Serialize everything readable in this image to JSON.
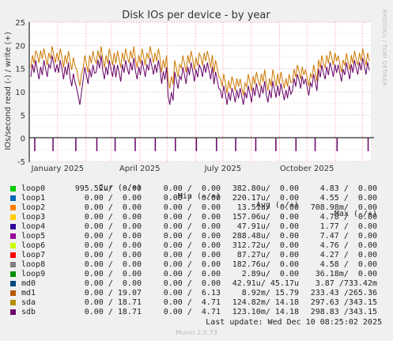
{
  "chart_data": {
    "type": "line",
    "title": "Disk IOs per device - by year",
    "ylabel": "IOs/second read (-) / write (+)",
    "ylim": [
      -5,
      25
    ],
    "yticks": [
      -5,
      0,
      5,
      10,
      15,
      20,
      25
    ],
    "grid": true,
    "xticks": [
      "January 2025",
      "April 2025",
      "July 2025",
      "October 2025"
    ],
    "x_range": [
      "2024-12-01",
      "2025-12-10"
    ],
    "series": [
      {
        "name": "sda",
        "color": "#cc7700",
        "write_approx": [
          17,
          18,
          17.5,
          18,
          17.5,
          17,
          16.5,
          13,
          16,
          17,
          18,
          17,
          17.5,
          17,
          17.5,
          18,
          17,
          17.5,
          18,
          17.5,
          16,
          12.5,
          15,
          16,
          17,
          16.5,
          17.5,
          17,
          15,
          12,
          11.5,
          12,
          11,
          12,
          12.5,
          13,
          12,
          13,
          12.5,
          12,
          14,
          14.5,
          13,
          14,
          16,
          17,
          17.5,
          16,
          16.5,
          17,
          17.5,
          17.5
        ]
      },
      {
        "name": "sdb",
        "color": "#660066",
        "write_approx": [
          15,
          14.5,
          15,
          16,
          15,
          14.5,
          13,
          9,
          13.5,
          14,
          16,
          14.5,
          15,
          14,
          15,
          15.5,
          14.5,
          15,
          15.5,
          15,
          13.5,
          9,
          12.5,
          13.5,
          14.5,
          14,
          15,
          14.5,
          12.5,
          9.5,
          9,
          9.5,
          9,
          9.5,
          10,
          10.5,
          9.5,
          10.5,
          10,
          9.5,
          12,
          12.5,
          11,
          12,
          14,
          14.5,
          15,
          14,
          14.5,
          15,
          15.5,
          15.5
        ]
      },
      {
        "name": "sdb",
        "color": "#660066",
        "read_approx": [
          -2.8,
          -2.8,
          -2.8,
          -2.8,
          -2.8,
          -2.8,
          -2.8,
          -2.8,
          -2.8,
          -2.8,
          -2.8,
          -2.8,
          -2.8,
          -2.8,
          -2.8,
          -2.8,
          -2.8
        ]
      }
    ]
  },
  "side_label": "RRDTOOL / TOBI OETIKER",
  "legend": {
    "headers": [
      "Cur (-/+)",
      "Min (-/+)",
      "Avg (-/+)",
      "Max (-/+)"
    ],
    "rows": [
      {
        "name": "loop0",
        "color": "#00cc00",
        "cur": "995.52u/  0.00",
        "min": "0.00 /  0.00",
        "avg": "382.80u/  0.00",
        "max": "4.83 /  0.00"
      },
      {
        "name": "loop1",
        "color": "#0066b3",
        "cur": "0.00 /  0.00",
        "min": "0.00 /  0.00",
        "avg": "220.17u/  0.00",
        "max": "4.55 /  0.00"
      },
      {
        "name": "loop2",
        "color": "#ff8000",
        "cur": "0.00 /  0.00",
        "min": "0.00 /  0.00",
        "avg": "13.51u/  0.00",
        "max": "708.98m/  0.00"
      },
      {
        "name": "loop3",
        "color": "#ffcc00",
        "cur": "0.00 /  0.00",
        "min": "0.00 /  0.00",
        "avg": "157.06u/  0.00",
        "max": "4.78 /  0.00"
      },
      {
        "name": "loop4",
        "color": "#330099",
        "cur": "0.00 /  0.00",
        "min": "0.00 /  0.00",
        "avg": "47.91u/  0.00",
        "max": "1.77 /  0.00"
      },
      {
        "name": "loop5",
        "color": "#990099",
        "cur": "0.00 /  0.00",
        "min": "0.00 /  0.00",
        "avg": "288.48u/  0.00",
        "max": "7.47 /  0.00"
      },
      {
        "name": "loop6",
        "color": "#ccff00",
        "cur": "0.00 /  0.00",
        "min": "0.00 /  0.00",
        "avg": "312.72u/  0.00",
        "max": "4.76 /  0.00"
      },
      {
        "name": "loop7",
        "color": "#ff0000",
        "cur": "0.00 /  0.00",
        "min": "0.00 /  0.00",
        "avg": "87.27u/  0.00",
        "max": "4.27 /  0.00"
      },
      {
        "name": "loop8",
        "color": "#808080",
        "cur": "0.00 /  0.00",
        "min": "0.00 /  0.00",
        "avg": "182.76u/  0.00",
        "max": "4.58 /  0.00"
      },
      {
        "name": "loop9",
        "color": "#008f00",
        "cur": "0.00 /  0.00",
        "min": "0.00 /  0.00",
        "avg": "2.89u/  0.00",
        "max": "36.18m/  0.00"
      },
      {
        "name": "md0",
        "color": "#00487d",
        "cur": "0.00 /  0.00",
        "min": "0.00 /  0.00",
        "avg": "42.91u/ 45.17u",
        "max": "3.87 /733.42m"
      },
      {
        "name": "md1",
        "color": "#b35a00",
        "cur": "0.00 / 19.07",
        "min": "0.00 /  6.13",
        "avg": "8.92m/ 15.79",
        "max": "233.43 /265.36"
      },
      {
        "name": "sda",
        "color": "#b38f00",
        "cur": "0.00 / 18.71",
        "min": "0.00 /  4.71",
        "avg": "124.82m/ 14.18",
        "max": "297.63 /343.15"
      },
      {
        "name": "sdb",
        "color": "#6b006b",
        "cur": "0.00 / 18.71",
        "min": "0.00 /  4.71",
        "avg": "123.10m/ 14.18",
        "max": "298.83 /343.15"
      }
    ]
  },
  "last_update": "Last update: Wed Dec 10 08:25:02 2025",
  "footer": "Munin 2.0.73"
}
